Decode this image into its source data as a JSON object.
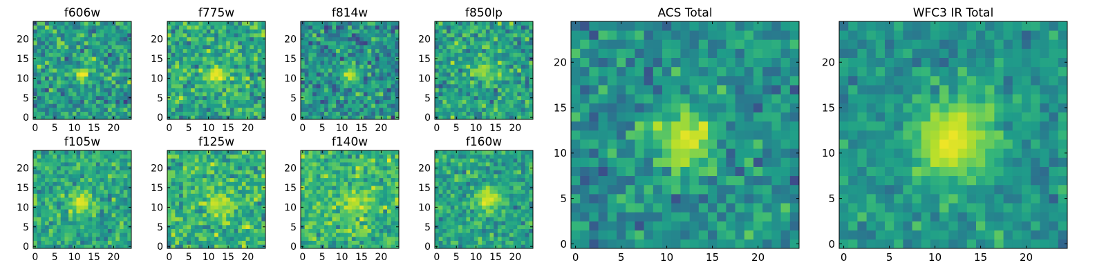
{
  "figure": {
    "background": "#ffffff",
    "colormap": "viridis",
    "colormap_stops": [
      "#440154",
      "#482878",
      "#3e4989",
      "#31688e",
      "#26828e",
      "#1f9e89",
      "#35b779",
      "#6ece58",
      "#b5de2b",
      "#fde725"
    ]
  },
  "chart_data": [
    {
      "type": "heatmap",
      "title": "f606w",
      "grid_size": 25,
      "xlim": [
        0,
        24
      ],
      "ylim": [
        0,
        24
      ],
      "xticks": [
        0,
        5,
        10,
        15,
        20
      ],
      "yticks": [
        0,
        5,
        10,
        15,
        20
      ],
      "source_center": [
        12,
        11
      ],
      "source_radius": 1.5,
      "source_peak": 0.97,
      "background_level": 0.55,
      "noise_level": 0.16,
      "seed": 11
    },
    {
      "type": "heatmap",
      "title": "f775w",
      "grid_size": 25,
      "xlim": [
        0,
        24
      ],
      "ylim": [
        0,
        24
      ],
      "xticks": [
        0,
        5,
        10,
        15,
        20
      ],
      "yticks": [
        0,
        5,
        10,
        15,
        20
      ],
      "source_center": [
        12,
        11
      ],
      "source_radius": 2.0,
      "source_peak": 0.97,
      "background_level": 0.6,
      "noise_level": 0.15,
      "seed": 22
    },
    {
      "type": "heatmap",
      "title": "f814w",
      "grid_size": 25,
      "xlim": [
        0,
        24
      ],
      "ylim": [
        0,
        24
      ],
      "xticks": [
        0,
        5,
        10,
        15,
        20
      ],
      "yticks": [
        0,
        5,
        10,
        15,
        20
      ],
      "source_center": [
        12,
        11
      ],
      "source_radius": 1.6,
      "source_peak": 0.92,
      "background_level": 0.5,
      "noise_level": 0.16,
      "seed": 33
    },
    {
      "type": "heatmap",
      "title": "f850lp",
      "grid_size": 25,
      "xlim": [
        0,
        24
      ],
      "ylim": [
        0,
        24
      ],
      "xticks": [
        0,
        5,
        10,
        15,
        20
      ],
      "yticks": [
        0,
        5,
        10,
        15,
        20
      ],
      "source_center": [
        12,
        12
      ],
      "source_radius": 1.8,
      "source_peak": 0.85,
      "background_level": 0.58,
      "noise_level": 0.16,
      "seed": 44
    },
    {
      "type": "heatmap",
      "title": "f105w",
      "grid_size": 25,
      "xlim": [
        0,
        24
      ],
      "ylim": [
        0,
        24
      ],
      "xticks": [
        0,
        5,
        10,
        15,
        20
      ],
      "yticks": [
        0,
        5,
        10,
        15,
        20
      ],
      "source_center": [
        12,
        11
      ],
      "source_radius": 2.0,
      "source_peak": 0.95,
      "background_level": 0.6,
      "noise_level": 0.13,
      "seed": 55
    },
    {
      "type": "heatmap",
      "title": "f125w",
      "grid_size": 25,
      "xlim": [
        0,
        24
      ],
      "ylim": [
        0,
        24
      ],
      "xticks": [
        0,
        5,
        10,
        15,
        20
      ],
      "yticks": [
        0,
        5,
        10,
        15,
        20
      ],
      "source_center": [
        12,
        11
      ],
      "source_radius": 2.0,
      "source_peak": 0.92,
      "background_level": 0.65,
      "noise_level": 0.15,
      "seed": 66
    },
    {
      "type": "heatmap",
      "title": "f140w",
      "grid_size": 25,
      "xlim": [
        0,
        24
      ],
      "ylim": [
        0,
        24
      ],
      "xticks": [
        0,
        5,
        10,
        15,
        20
      ],
      "yticks": [
        0,
        5,
        10,
        15,
        20
      ],
      "source_center": [
        13,
        11
      ],
      "source_radius": 2.2,
      "source_peak": 0.9,
      "background_level": 0.66,
      "noise_level": 0.14,
      "seed": 77
    },
    {
      "type": "heatmap",
      "title": "f160w",
      "grid_size": 25,
      "xlim": [
        0,
        24
      ],
      "ylim": [
        0,
        24
      ],
      "xticks": [
        0,
        5,
        10,
        15,
        20
      ],
      "yticks": [
        0,
        5,
        10,
        15,
        20
      ],
      "source_center": [
        13,
        12
      ],
      "source_radius": 2.4,
      "source_peak": 0.95,
      "background_level": 0.58,
      "noise_level": 0.13,
      "seed": 88
    },
    {
      "type": "heatmap",
      "title": "ACS Total",
      "grid_size": 25,
      "xlim": [
        0,
        24
      ],
      "ylim": [
        0,
        24
      ],
      "xticks": [
        0,
        5,
        10,
        15,
        20
      ],
      "yticks": [
        0,
        5,
        10,
        15,
        20
      ],
      "source_center": [
        12,
        11.5
      ],
      "source_radius": 2.2,
      "source_peak": 0.97,
      "background_level": 0.5,
      "noise_level": 0.14,
      "seed": 99
    },
    {
      "type": "heatmap",
      "title": "WFC3 IR Total",
      "grid_size": 25,
      "xlim": [
        0,
        24
      ],
      "ylim": [
        0,
        24
      ],
      "xticks": [
        0,
        5,
        10,
        15,
        20
      ],
      "yticks": [
        0,
        5,
        10,
        15,
        20
      ],
      "source_center": [
        12,
        11.5
      ],
      "source_radius": 3.2,
      "source_peak": 0.97,
      "background_level": 0.52,
      "noise_level": 0.1,
      "seed": 111
    }
  ]
}
